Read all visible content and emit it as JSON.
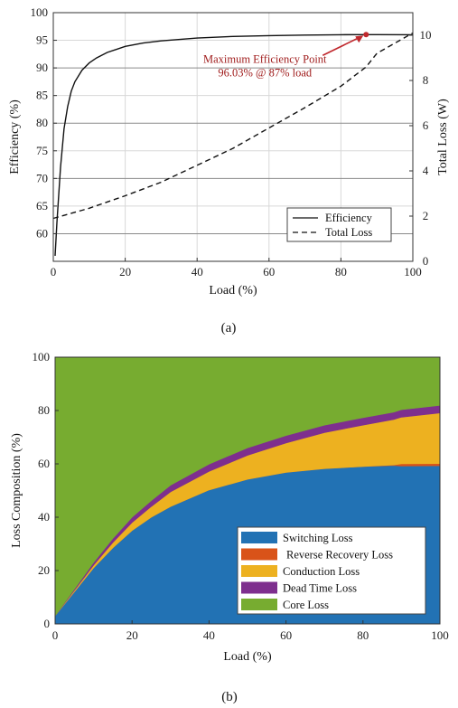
{
  "chart_data": [
    {
      "type": "line",
      "caption": "(a)",
      "xlabel": "Load (%)",
      "ylabel": "Efficiency (%)",
      "ylabel_right": "Total Loss (W)",
      "xlim": [
        0,
        100
      ],
      "ylim": [
        55,
        100
      ],
      "ylim_right": [
        0,
        11
      ],
      "xticks": [
        "0",
        "20",
        "40",
        "60",
        "80",
        "100"
      ],
      "yticks": [
        "60",
        "65",
        "70",
        "75",
        "80",
        "85",
        "90",
        "95",
        "100"
      ],
      "yticks_right": [
        "0",
        "2",
        "4",
        "6",
        "8",
        "10"
      ],
      "grid": true,
      "legend_placement": "bottom-right",
      "series": [
        {
          "name": "Efficiency",
          "axis": "left",
          "style": "solid",
          "color": "#111111",
          "x": [
            0.5,
            1,
            2,
            3,
            4,
            5,
            6,
            8,
            10,
            12,
            15,
            20,
            25,
            30,
            40,
            50,
            60,
            70,
            80,
            87,
            90,
            100
          ],
          "y": [
            56,
            62,
            72,
            79,
            83,
            85.8,
            87.5,
            89.6,
            90.9,
            91.8,
            92.8,
            93.9,
            94.5,
            94.9,
            95.4,
            95.7,
            95.85,
            95.95,
            96.0,
            96.03,
            96.02,
            96.0
          ]
        },
        {
          "name": "Total Loss",
          "axis": "right",
          "style": "dashed",
          "color": "#111111",
          "x": [
            0,
            10,
            20,
            30,
            40,
            50,
            60,
            70,
            80,
            87,
            90,
            100
          ],
          "y": [
            1.9,
            2.35,
            2.9,
            3.5,
            4.25,
            5.0,
            5.9,
            6.8,
            7.75,
            8.6,
            9.2,
            10.1
          ]
        }
      ],
      "annotation": {
        "line1": "Maximum Efficiency Point",
        "line2": "96.03% @ 87% load",
        "point_x": 87,
        "point_y": 96.03,
        "color": "#c0282d"
      }
    },
    {
      "type": "area",
      "caption": "(b)",
      "xlabel": "Load (%)",
      "ylabel": "Loss Composition (%)",
      "xlim": [
        0,
        100
      ],
      "ylim": [
        0,
        100
      ],
      "xticks": [
        "0",
        "20",
        "40",
        "60",
        "80",
        "100"
      ],
      "yticks": [
        "0",
        "20",
        "40",
        "60",
        "80",
        "100"
      ],
      "grid": false,
      "legend_placement": "bottom-right",
      "x": [
        0,
        5,
        10,
        15,
        20,
        25,
        30,
        40,
        50,
        60,
        70,
        80,
        88,
        90,
        100
      ],
      "series": [
        {
          "name": "Switching Loss",
          "color": "#2272b4",
          "values": [
            3,
            12,
            21,
            28.5,
            35,
            40,
            44,
            50.2,
            54.2,
            56.8,
            58.2,
            59,
            59.4,
            59.2,
            59.3
          ]
        },
        {
          "name": "Reverse Recovery Loss",
          "color": "#d95319",
          "values": [
            0,
            0,
            0,
            0,
            0,
            0,
            0,
            0,
            0,
            0,
            0,
            0,
            0.2,
            0.8,
            0.8
          ]
        },
        {
          "name": "Conduction Loss",
          "color": "#edb120",
          "values": [
            0,
            0.5,
            1,
            2,
            3,
            4,
            5.5,
            7,
            9,
            11,
            13.5,
            15.5,
            17,
            17.5,
            19
          ]
        },
        {
          "name": "Dead Time Loss",
          "color": "#7e2f8e",
          "values": [
            0,
            0.5,
            1,
            1.5,
            2,
            2.2,
            2.5,
            2.7,
            2.8,
            2.8,
            2.8,
            2.8,
            2.8,
            2.8,
            2.8
          ]
        },
        {
          "name": "Core Loss",
          "color": "#77ac30",
          "values": [
            97,
            87,
            77,
            68,
            60,
            53.8,
            48,
            40.1,
            34,
            29.4,
            25.5,
            22.7,
            20.6,
            19.7,
            18.1
          ]
        }
      ]
    }
  ]
}
